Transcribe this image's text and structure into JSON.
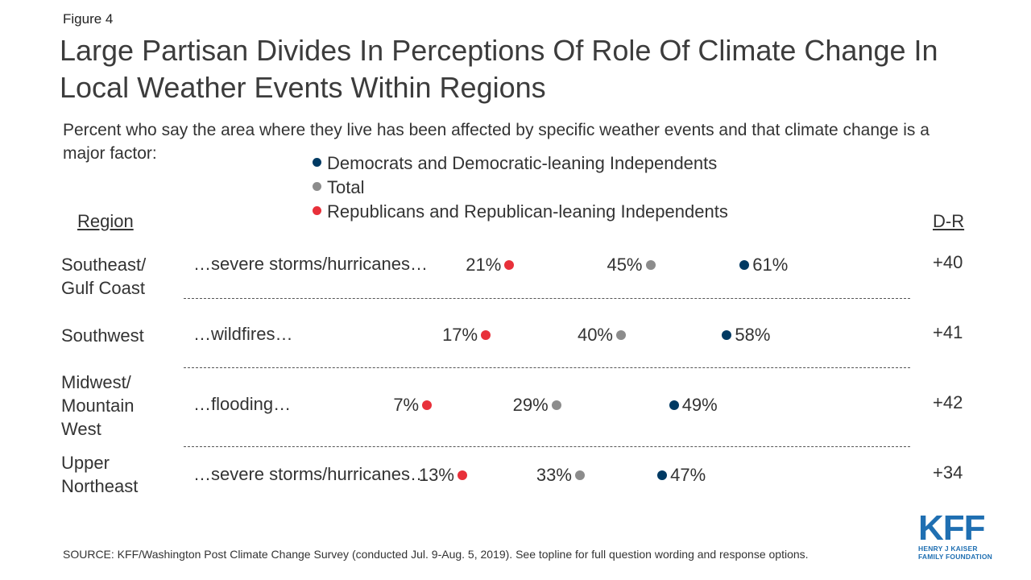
{
  "figure_label": "Figure 4",
  "title": "Large Partisan Divides In Perceptions Of Role Of Climate Change In Local Weather Events Within Regions",
  "subtitle": "Percent who say the area where they live has been affected by specific weather events and that climate change is a major factor:",
  "headers": {
    "region": "Region",
    "gap": "D-R"
  },
  "source": "SOURCE: KFF/Washington Post Climate Change Survey (conducted Jul. 9-Aug. 5, 2019). See topline for full question wording and response options.",
  "logo": {
    "mark": "KFF",
    "line1": "HENRY J KAISER",
    "line2": "FAMILY FOUNDATION"
  },
  "colors": {
    "dem": "#003a63",
    "total": "#8c8c8c",
    "rep": "#e8303a",
    "logo": "#1f6fb2"
  },
  "chart_data": {
    "type": "scatter",
    "series": [
      {
        "key": "dem",
        "name": "Democrats and Democratic-leaning Independents",
        "color": "#003a63"
      },
      {
        "key": "total",
        "name": "Total",
        "color": "#8c8c8c"
      },
      {
        "key": "rep",
        "name": "Republicans and Republican-leaning Independents",
        "color": "#e8303a"
      }
    ],
    "rows": [
      {
        "region": "Southeast/\nGulf Coast",
        "event": "…severe storms/hurricanes…",
        "rep": 21,
        "total": 45,
        "dem": 61,
        "gap": "+40"
      },
      {
        "region": "Southwest",
        "event": "…wildfires…",
        "rep": 17,
        "total": 40,
        "dem": 58,
        "gap": "+41"
      },
      {
        "region": "Midwest/\nMountain\nWest",
        "event": "…flooding…",
        "rep": 7,
        "total": 29,
        "dem": 49,
        "gap": "+42"
      },
      {
        "region": "Upper\nNortheast",
        "event": "…severe storms/hurricanes…",
        "rep": 13,
        "total": 33,
        "dem": 47,
        "gap": "+34"
      }
    ],
    "value_suffix": "%"
  }
}
